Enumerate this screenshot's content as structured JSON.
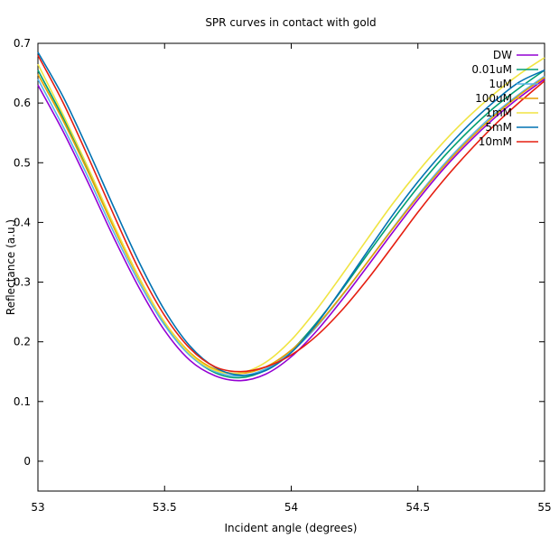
{
  "chart_data": {
    "type": "line",
    "title": "SPR curves in contact with gold",
    "xlabel": "Incident angle (degrees)",
    "ylabel": "Reflectance (a.u.)",
    "xlim": [
      53,
      55
    ],
    "ylim": [
      -0.05,
      0.7
    ],
    "x_ticks": [
      53,
      53.5,
      54,
      54.5,
      55
    ],
    "x_tick_labels": [
      "53",
      "53.5",
      "54",
      "54.5",
      "55"
    ],
    "y_ticks": [
      0,
      0.1,
      0.2,
      0.3,
      0.4,
      0.5,
      0.6,
      0.7
    ],
    "y_tick_labels": [
      "0",
      "0.1",
      "0.2",
      "0.3",
      "0.4",
      "0.5",
      "0.6",
      "0.7"
    ],
    "grid": false,
    "legend_position": "top-right",
    "x": [
      53.0,
      53.1,
      53.2,
      53.3,
      53.4,
      53.5,
      53.6,
      53.7,
      53.8,
      53.9,
      54.0,
      54.1,
      54.2,
      54.3,
      54.4,
      54.5,
      54.6,
      54.7,
      54.8,
      54.9,
      55.0
    ],
    "series": [
      {
        "name": "DW",
        "color": "#9400d3",
        "values": [
          0.63,
          0.552,
          0.465,
          0.374,
          0.29,
          0.219,
          0.169,
          0.143,
          0.135,
          0.146,
          0.175,
          0.218,
          0.27,
          0.326,
          0.383,
          0.438,
          0.489,
          0.534,
          0.574,
          0.609,
          0.64
        ]
      },
      {
        "name": "0.01uM",
        "color": "#009e73",
        "values": [
          0.655,
          0.575,
          0.488,
          0.395,
          0.307,
          0.232,
          0.178,
          0.148,
          0.14,
          0.153,
          0.185,
          0.232,
          0.287,
          0.346,
          0.404,
          0.459,
          0.509,
          0.553,
          0.592,
          0.625,
          0.655
        ]
      },
      {
        "name": "1uM",
        "color": "#56b4e9",
        "values": [
          0.64,
          0.56,
          0.474,
          0.383,
          0.299,
          0.228,
          0.177,
          0.15,
          0.143,
          0.155,
          0.183,
          0.225,
          0.277,
          0.333,
          0.39,
          0.445,
          0.496,
          0.541,
          0.581,
          0.615,
          0.645
        ]
      },
      {
        "name": "100uM",
        "color": "#e69f00",
        "values": [
          0.648,
          0.57,
          0.483,
          0.391,
          0.305,
          0.233,
          0.182,
          0.154,
          0.147,
          0.158,
          0.186,
          0.227,
          0.278,
          0.333,
          0.389,
          0.443,
          0.493,
          0.538,
          0.578,
          0.613,
          0.643
        ]
      },
      {
        "name": "1mM",
        "color": "#f0e442",
        "values": [
          0.665,
          0.58,
          0.49,
          0.396,
          0.307,
          0.233,
          0.18,
          0.152,
          0.148,
          0.166,
          0.203,
          0.254,
          0.312,
          0.372,
          0.431,
          0.485,
          0.534,
          0.577,
          0.615,
          0.648,
          0.676
        ]
      },
      {
        "name": "5mM",
        "color": "#0072b2",
        "values": [
          0.685,
          0.61,
          0.52,
          0.425,
          0.333,
          0.253,
          0.193,
          0.157,
          0.144,
          0.152,
          0.182,
          0.23,
          0.289,
          0.351,
          0.412,
          0.468,
          0.518,
          0.563,
          0.602,
          0.635,
          0.655
        ]
      },
      {
        "name": "10mM",
        "color": "#e51e10",
        "values": [
          0.68,
          0.6,
          0.508,
          0.412,
          0.32,
          0.244,
          0.189,
          0.158,
          0.15,
          0.158,
          0.178,
          0.21,
          0.253,
          0.304,
          0.36,
          0.417,
          0.47,
          0.518,
          0.562,
          0.601,
          0.637
        ]
      }
    ]
  }
}
